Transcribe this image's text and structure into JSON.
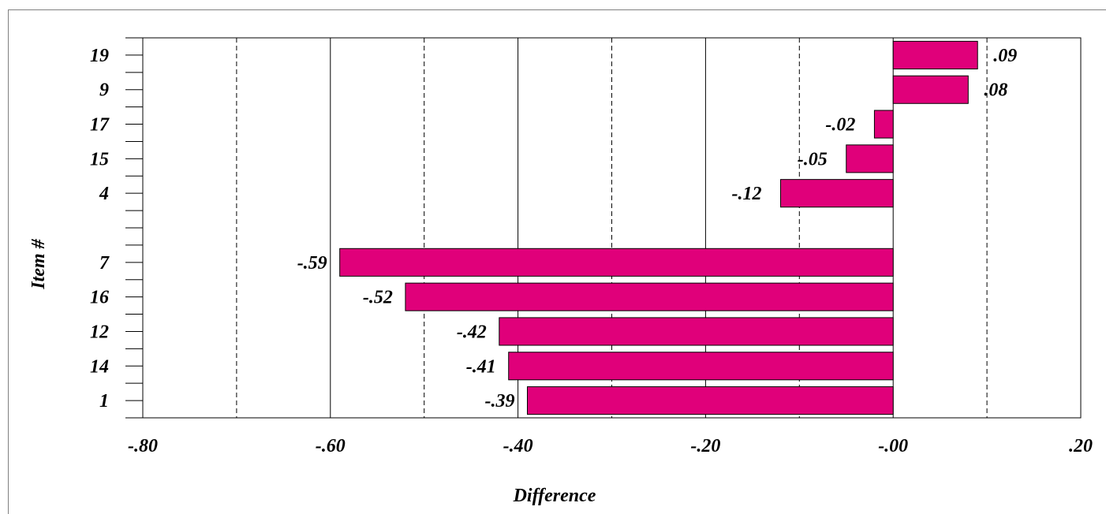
{
  "chart_data": {
    "type": "bar",
    "orientation": "horizontal",
    "title": "",
    "xlabel": "Difference",
    "ylabel": "Item #",
    "xlim": [
      -0.8,
      0.2
    ],
    "x_ticks": [
      -0.8,
      -0.6,
      -0.4,
      -0.2,
      0.0,
      0.2
    ],
    "x_tick_labels": [
      "-.80",
      "-.60",
      "-.40",
      "-.20",
      "-.00",
      ".20"
    ],
    "grid": "vertical lines at every 0.1, dashed at odd tenths",
    "bar_color": "#e0007a",
    "rows": [
      {
        "category": "19",
        "value": 0.09,
        "label": ".09"
      },
      {
        "category": "9",
        "value": 0.08,
        "label": ".08"
      },
      {
        "category": "17",
        "value": -0.02,
        "label": "-.02"
      },
      {
        "category": "15",
        "value": -0.05,
        "label": "-.05"
      },
      {
        "category": "4",
        "value": -0.12,
        "label": "-.12"
      },
      {
        "category": "",
        "value": null,
        "label": ""
      },
      {
        "category": "7",
        "value": -0.59,
        "label": "-.59"
      },
      {
        "category": "16",
        "value": -0.52,
        "label": "-.52"
      },
      {
        "category": "12",
        "value": -0.42,
        "label": "-.42"
      },
      {
        "category": "14",
        "value": -0.41,
        "label": "-.41"
      },
      {
        "category": "1",
        "value": -0.39,
        "label": "-.39"
      }
    ]
  }
}
